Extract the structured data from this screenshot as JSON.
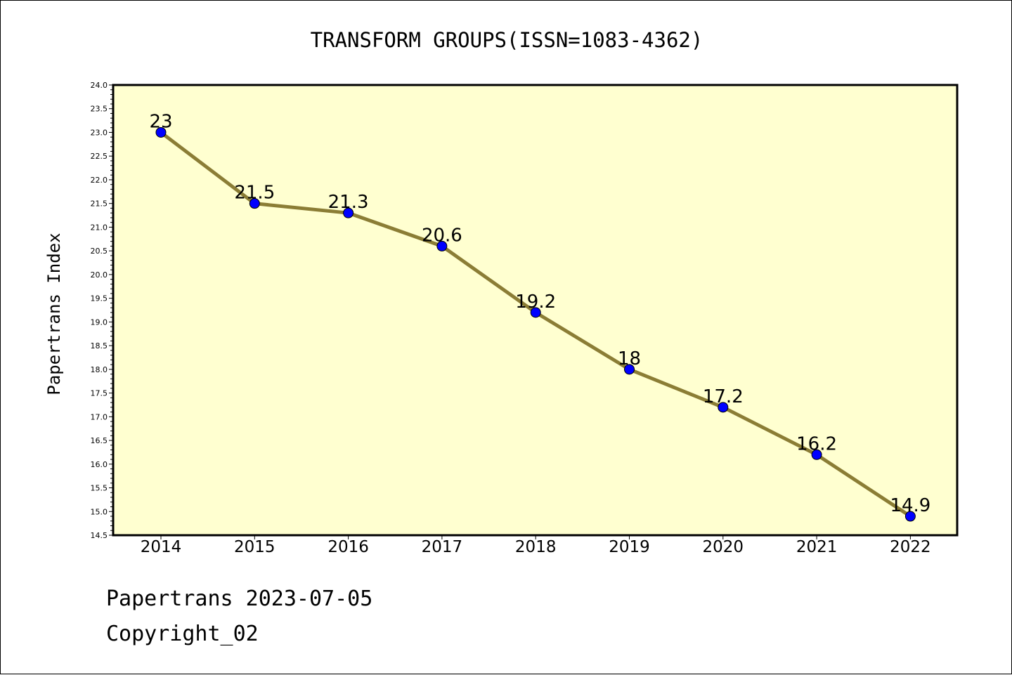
{
  "chart_data": {
    "type": "line",
    "title": "TRANSFORM GROUPS(ISSN=1083-4362)",
    "xlabel": "",
    "ylabel": "Papertrans Index",
    "categories": [
      "2014",
      "2015",
      "2016",
      "2017",
      "2018",
      "2019",
      "2020",
      "2021",
      "2022"
    ],
    "series": [
      {
        "values": [
          23,
          21.5,
          21.3,
          20.6,
          19.2,
          18,
          17.2,
          16.2,
          14.9
        ],
        "data_labels": [
          "23",
          "21.5",
          "21.3",
          "20.6",
          "19.2",
          "18",
          "17.2",
          "16.2",
          "14.9"
        ]
      }
    ],
    "ylim": [
      14.5,
      24.0
    ],
    "yticks": [
      "14.5",
      "15.0",
      "15.5",
      "16.0",
      "16.5",
      "17.0",
      "17.5",
      "18.0",
      "18.5",
      "19.0",
      "19.5",
      "20.0",
      "20.5",
      "21.0",
      "21.5",
      "22.0",
      "22.5",
      "23.0",
      "23.5",
      "24.0"
    ],
    "grid": false,
    "legend": "none",
    "colors": {
      "plot_background": "#ffffd0",
      "line": "#8b7d35",
      "marker": "#0000ff",
      "marker_edge": "#000000"
    }
  },
  "footer": {
    "line1": "Papertrans 2023-07-05",
    "line2": "Copyright_02"
  }
}
